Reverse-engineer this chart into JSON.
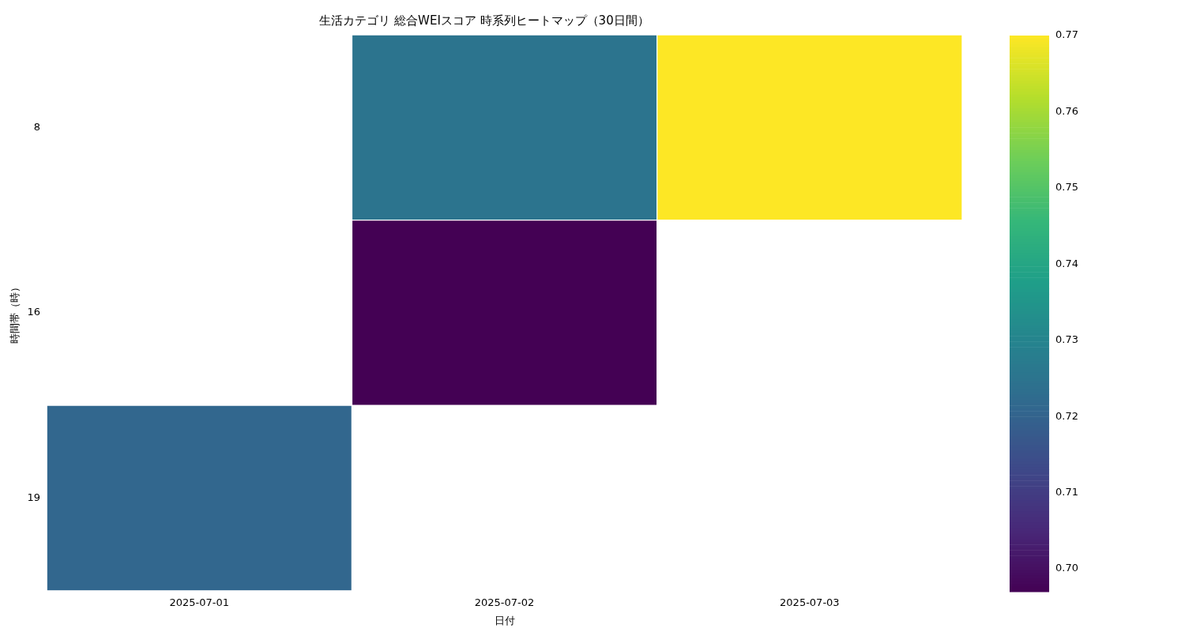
{
  "chart_data": {
    "type": "heatmap",
    "title": "生活カテゴリ 総合WEIスコア 時系列ヒートマップ（30日間）",
    "xlabel": "日付",
    "ylabel": "時間帯（時）",
    "categories": [
      "2025-07-01",
      "2025-07-02",
      "2025-07-03"
    ],
    "y_categories": [
      "8",
      "16",
      "19"
    ],
    "cells": [
      [
        null,
        0.725,
        0.77
      ],
      [
        null,
        0.697,
        null
      ],
      [
        0.721,
        null,
        null
      ]
    ],
    "clim": [
      0.697,
      0.77
    ],
    "cticks": [
      {
        "value": 0.7,
        "label": "0.70"
      },
      0.71,
      0.72,
      0.73,
      0.74,
      0.75,
      0.76,
      0.77
    ],
    "grid": false,
    "legend": false
  }
}
